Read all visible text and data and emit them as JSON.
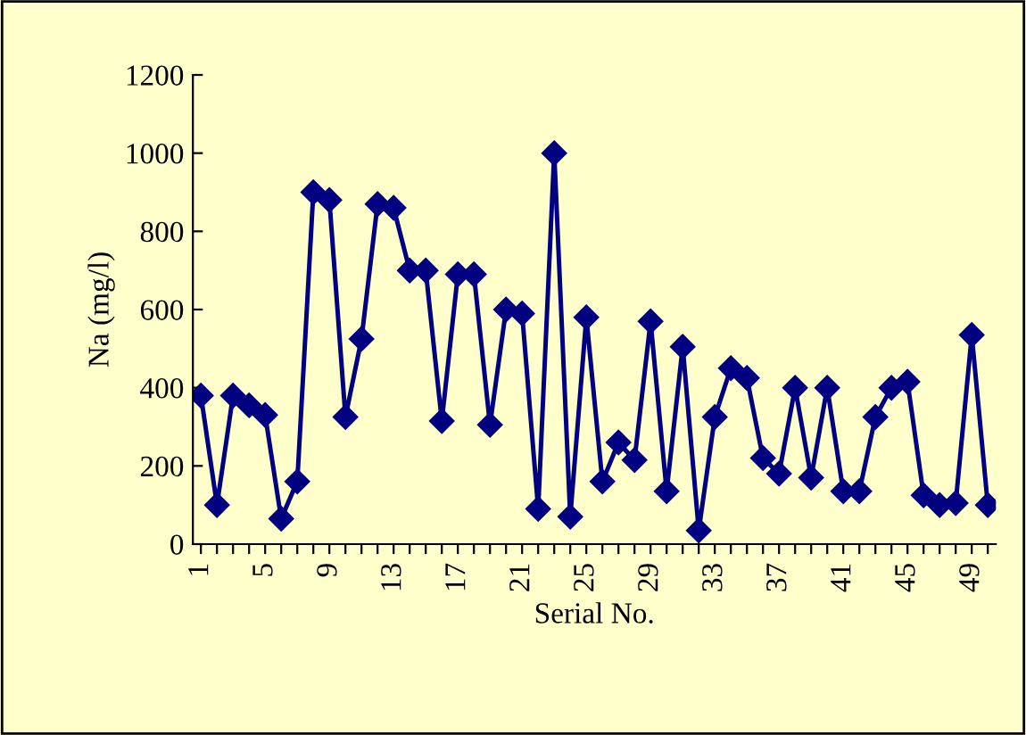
{
  "chart_data": {
    "type": "line",
    "xlabel": "Serial No.",
    "ylabel": "Na (mg/l)",
    "categories": [
      "1",
      null,
      null,
      null,
      "5",
      null,
      null,
      null,
      "9",
      null,
      null,
      null,
      "13",
      null,
      null,
      null,
      "17",
      null,
      null,
      null,
      "21",
      null,
      null,
      null,
      "25",
      null,
      null,
      null,
      "29",
      null,
      null,
      null,
      "33",
      null,
      null,
      null,
      "37",
      null,
      null,
      null,
      "41",
      null,
      null,
      null,
      "45",
      null,
      null,
      null,
      "49",
      null
    ],
    "series": [
      {
        "color": "#000080",
        "values": [
          380,
          100,
          380,
          355,
          330,
          65,
          160,
          900,
          880,
          325,
          525,
          870,
          860,
          700,
          700,
          315,
          690,
          690,
          305,
          600,
          590,
          90,
          1000,
          70,
          580,
          160,
          260,
          215,
          570,
          135,
          505,
          35,
          325,
          450,
          425,
          220,
          180,
          400,
          170,
          400,
          135,
          135,
          325,
          400,
          415,
          125,
          100,
          105,
          535,
          100
        ]
      }
    ],
    "ylim": [
      0,
      1200
    ],
    "yticks": [
      0,
      200,
      400,
      600,
      800,
      1000,
      1200
    ],
    "grid": false,
    "legend": false,
    "marker": "diamond",
    "line_style": "solid"
  }
}
